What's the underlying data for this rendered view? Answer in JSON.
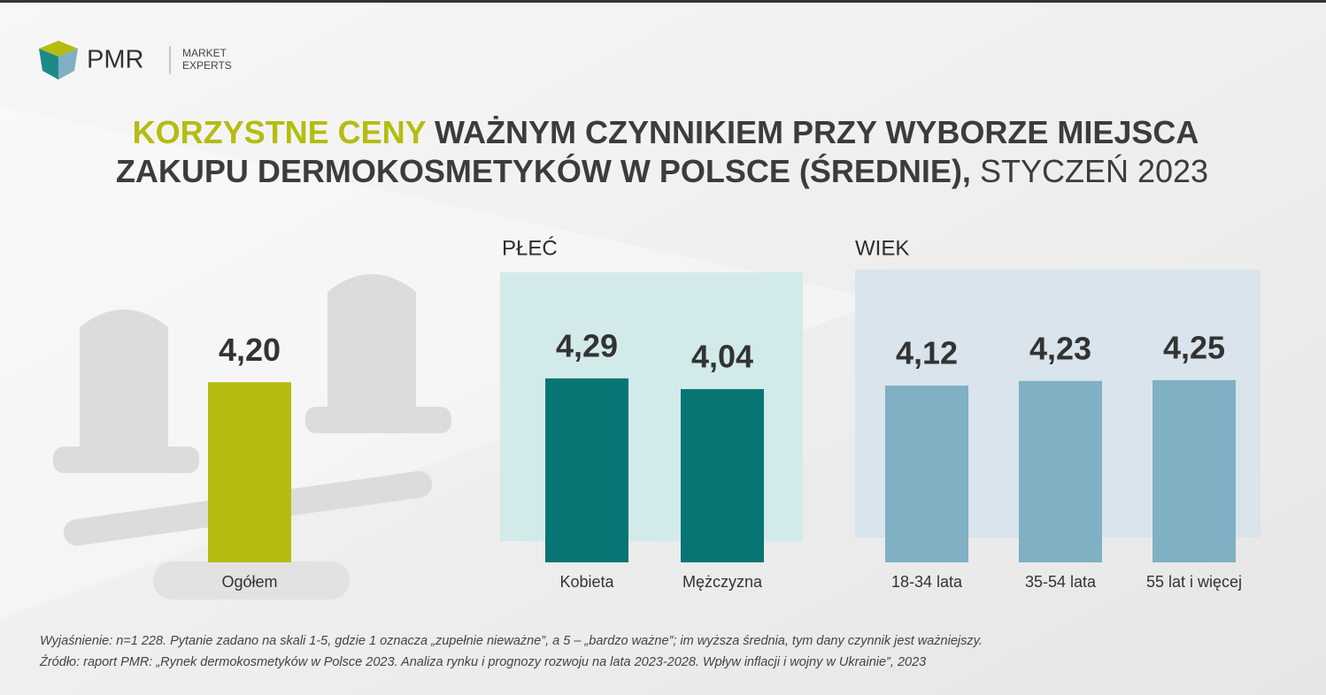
{
  "logo": {
    "name": "PMR",
    "tagline": [
      "MARKET",
      "EXPERTS"
    ]
  },
  "title": {
    "highlight": "KORZYSTNE CENY",
    "main": [
      "WAŻNYM CZYNNIKIEM PRZY WYBORZE MIEJSCA",
      "ZAKUPU DERMOKOSMETYKÓW W POLSCE (ŚREDNIE),"
    ],
    "date": "STYCZEŃ 2023"
  },
  "chart_data": [
    {
      "type": "bar",
      "categories": [
        "Ogółem"
      ],
      "values": [
        4.2
      ],
      "value_labels": [
        "4,20"
      ],
      "color": "#b4bd0f"
    },
    {
      "type": "bar",
      "title": "PŁEĆ",
      "categories": [
        "Kobieta",
        "Mężczyzna"
      ],
      "values": [
        4.29,
        4.04
      ],
      "value_labels": [
        "4,29",
        "4,04"
      ],
      "color": "#067574"
    },
    {
      "type": "bar",
      "title": "WIEK",
      "categories": [
        "18-34 lata",
        "35-54 lata",
        "55 lat i więcej"
      ],
      "values": [
        4.12,
        4.23,
        4.25
      ],
      "value_labels": [
        "4,12",
        "4,23",
        "4,25"
      ],
      "color": "#7fb0c3"
    }
  ],
  "notes": [
    "Wyjaśnienie: n=1 228. Pytanie zadano na skali 1-5, gdzie 1 oznacza „zupełnie nieważne”, a 5 – „bardzo ważne”; im wyższa średnia, tym dany czynnik jest ważniejszy.",
    "Źródło: raport PMR: „Rynek dermokosmetyków w Polsce 2023. Analiza rynku i prognozy rozwoju na lata 2023-2028. Wpływ inflacji i wojny w Ukrainie”, 2023"
  ]
}
